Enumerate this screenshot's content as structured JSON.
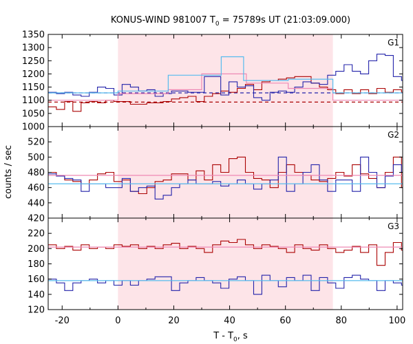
{
  "chart_data": {
    "type": "line",
    "title": "KONUS-WIND 981007 T",
    "title_sub": "0",
    "title_rest": " = 75789s UT (21:03:09.000)",
    "xlabel_main": "T - T",
    "xlabel_sub": "0",
    "xlabel_rest": ", s",
    "ylabel": "counts / sec",
    "xlim": [
      -25,
      102
    ],
    "xticks": [
      "-20",
      "0",
      "20",
      "40",
      "60",
      "80",
      "100"
    ],
    "xtick_values": [
      -20,
      0,
      20,
      40,
      60,
      80,
      100
    ],
    "shaded_interval": [
      0,
      77
    ],
    "shade_color": "#fde4e8",
    "colors": {
      "red": "#aa0000",
      "blue": "#2222aa",
      "pink": "#ee88b4",
      "lightblue": "#55bbee"
    },
    "bin_start": -25,
    "bin_width": 2.944,
    "panels": [
      {
        "label": "G1",
        "ylim": [
          1000,
          1350
        ],
        "yticks": [
          "1000",
          "1050",
          "1100",
          "1150",
          "1200",
          "1250",
          "1300",
          "1350"
        ],
        "ytick_values": [
          1000,
          1050,
          1100,
          1150,
          1200,
          1250,
          1300,
          1350
        ],
        "series": [
          {
            "color": "red",
            "values": [
              1075,
              1065,
              1095,
              1058,
              1090,
              1095,
              1090,
              1100,
              1095,
              1095,
              1085,
              1085,
              1090,
              1090,
              1095,
              1105,
              1110,
              1115,
              1095,
              1115,
              1125,
              1135,
              1130,
              1145,
              1160,
              1140,
              1170,
              1175,
              1180,
              1185,
              1190,
              1190,
              1165,
              1150,
              1140,
              1125,
              1140,
              1125,
              1140,
              1125,
              1145,
              1130,
              1140,
              1130,
              1105,
              1110,
              1100,
              1115,
              1100,
              1095,
              1085,
              1110,
              1115,
              1098,
              1105,
              1090,
              1080,
              1050,
              1075,
              1110,
              1090,
              1065,
              1120,
              1090,
              1050,
              1045
            ]
          },
          {
            "color": "blue",
            "values": [
              1130,
              1125,
              1130,
              1120,
              1115,
              1130,
              1150,
              1145,
              1120,
              1160,
              1150,
              1135,
              1140,
              1115,
              1125,
              1135,
              1135,
              1130,
              1130,
              1190,
              1190,
              1120,
              1170,
              1150,
              1155,
              1110,
              1100,
              1130,
              1135,
              1130,
              1150,
              1170,
              1165,
              1160,
              1195,
              1210,
              1235,
              1210,
              1200,
              1250,
              1275,
              1270,
              1190,
              1175,
              1160,
              1170,
              1145,
              1150,
              1160,
              1140,
              1150,
              1155,
              1125,
              1150,
              1175,
              1185,
              1200,
              1170,
              1135,
              1170,
              1180,
              1125,
              1150,
              1130,
              1145,
              1120,
              1150,
              1140,
              1135
            ]
          },
          {
            "color": "pink",
            "step": [
              [
                -25,
                1100
              ],
              [
                0,
                1100
              ],
              [
                0,
                1125
              ],
              [
                18,
                1125
              ],
              [
                18,
                1140
              ],
              [
                30,
                1140
              ],
              [
                30,
                1200
              ],
              [
                46,
                1200
              ],
              [
                46,
                1165
              ],
              [
                61,
                1165
              ],
              [
                61,
                1145
              ],
              [
                77,
                1145
              ],
              [
                77,
                1100
              ],
              [
                102,
                1100
              ]
            ]
          },
          {
            "color": "lightblue",
            "step": [
              [
                -25,
                1128
              ],
              [
                0,
                1128
              ],
              [
                0,
                1135
              ],
              [
                18,
                1135
              ],
              [
                18,
                1195
              ],
              [
                37,
                1195
              ],
              [
                37,
                1265
              ],
              [
                45,
                1265
              ],
              [
                45,
                1175
              ],
              [
                61,
                1175
              ],
              [
                61,
                1180
              ],
              [
                77,
                1180
              ],
              [
                77,
                1128
              ],
              [
                102,
                1128
              ]
            ]
          }
        ],
        "background_lines": [
          {
            "color": "red",
            "y": 1093
          },
          {
            "color": "blue",
            "y": 1128
          }
        ]
      },
      {
        "label": "G2",
        "ylim": [
          420,
          540
        ],
        "yticks": [
          "420",
          "440",
          "460",
          "480",
          "500",
          "520"
        ],
        "ytick_values": [
          420,
          440,
          460,
          480,
          500,
          520
        ],
        "series": [
          {
            "color": "red",
            "values": [
              480,
              475,
              470,
              468,
              465,
              470,
              478,
              480,
              468,
              470,
              455,
              452,
              460,
              468,
              470,
              478,
              478,
              470,
              482,
              470,
              490,
              480,
              498,
              500,
              480,
              472,
              470,
              460,
              480,
              490,
              480,
              476,
              470,
              468,
              472,
              480,
              475,
              490,
              478,
              472,
              460,
              480,
              500,
              460,
              480,
              478,
              490,
              500,
              495,
              470,
              475,
              450,
              478,
              470,
              478,
              470,
              475,
              460,
              490,
              495,
              490,
              485,
              480,
              508,
              500,
              478,
              490,
              480
            ]
          },
          {
            "color": "blue",
            "values": [
              478,
              475,
              472,
              470,
              455,
              465,
              465,
              460,
              460,
              472,
              455,
              460,
              462,
              445,
              450,
              460,
              465,
              470,
              465,
              465,
              468,
              462,
              465,
              470,
              465,
              458,
              465,
              470,
              500,
              455,
              465,
              480,
              490,
              470,
              455,
              470,
              470,
              455,
              500,
              480,
              460,
              475,
              490,
              480,
              460,
              480,
              470,
              465,
              500,
              480,
              485,
              450,
              450,
              460,
              450,
              465,
              480,
              460,
              465,
              485,
              470,
              480,
              485,
              470,
              465,
              470,
              460,
              470,
              468
            ]
          },
          {
            "color": "pink",
            "step": [
              [
                -25,
                476
              ],
              [
                102,
                476
              ]
            ]
          },
          {
            "color": "lightblue",
            "step": [
              [
                -25,
                465
              ],
              [
                102,
                465
              ]
            ]
          }
        ],
        "background_lines": []
      },
      {
        "label": "G3",
        "ylim": [
          120,
          240
        ],
        "yticks": [
          "120",
          "140",
          "160",
          "180",
          "200",
          "220"
        ],
        "ytick_values": [
          120,
          140,
          160,
          180,
          200,
          220
        ],
        "series": [
          {
            "color": "red",
            "values": [
              205,
              200,
              203,
              198,
              205,
              200,
              202,
              200,
              205,
              203,
              205,
              200,
              203,
              200,
              205,
              207,
              200,
              203,
              200,
              195,
              205,
              210,
              208,
              212,
              205,
              200,
              205,
              203,
              200,
              195,
              205,
              200,
              198,
              205,
              200,
              195,
              198,
              203,
              195,
              205,
              178,
              195,
              208,
              198,
              185,
              203,
              200,
              205,
              213,
              215,
              203,
              208,
              205,
              203,
              205,
              208,
              210,
              200,
              205,
              218,
              203,
              210,
              212,
              202,
              195,
              205,
              210,
              215,
              208
            ]
          },
          {
            "color": "blue",
            "values": [
              160,
              155,
              145,
              155,
              158,
              160,
              155,
              158,
              152,
              158,
              152,
              158,
              160,
              163,
              163,
              145,
              155,
              158,
              162,
              158,
              155,
              148,
              160,
              163,
              158,
              140,
              165,
              158,
              150,
              162,
              158,
              165,
              145,
              162,
              155,
              148,
              162,
              165,
              160,
              158,
              145,
              158,
              155,
              152,
              150,
              155,
              140,
              162,
              150,
              145,
              155,
              148,
              145,
              165,
              150,
              152,
              160,
              158,
              155,
              150,
              158,
              155,
              158,
              138,
              165,
              158,
              140,
              162,
              165
            ]
          },
          {
            "color": "pink",
            "step": [
              [
                -25,
                202
              ],
              [
                102,
                202
              ]
            ]
          },
          {
            "color": "lightblue",
            "step": [
              [
                -25,
                158
              ],
              [
                102,
                158
              ]
            ]
          }
        ],
        "background_lines": []
      }
    ]
  }
}
